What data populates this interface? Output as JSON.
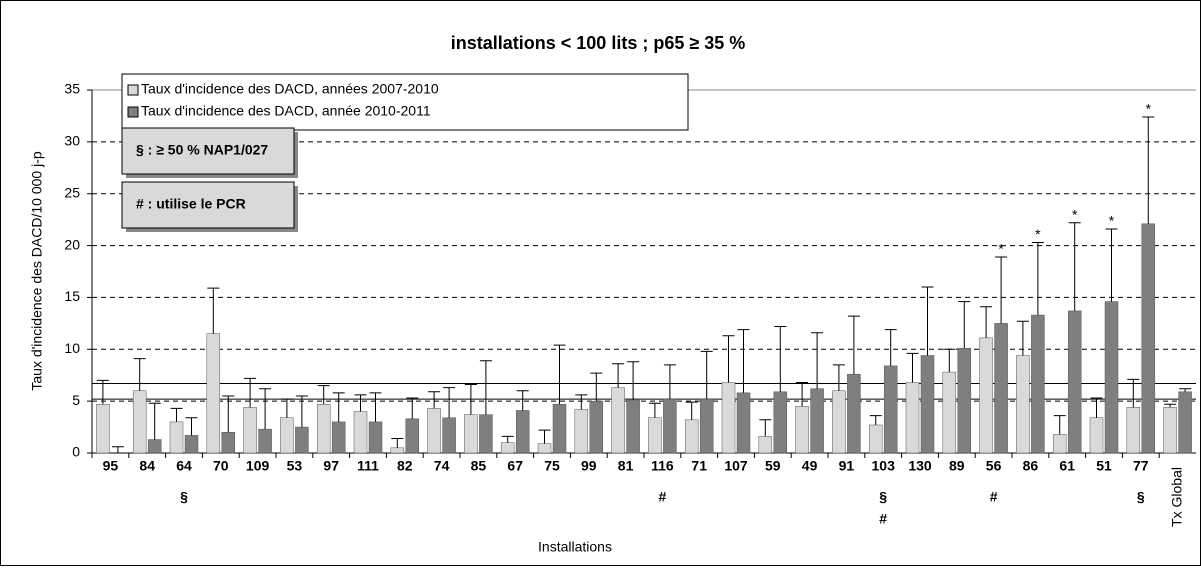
{
  "chart_data": {
    "type": "bar",
    "title": "installations < 100 lits ; p65 ≥ 35 %",
    "y_label": "Taux d'incidence des DACD/10 000 j-p",
    "x_label": "Installations",
    "categories": [
      "95",
      "84",
      "64",
      "70",
      "109",
      "53",
      "97",
      "111",
      "82",
      "74",
      "85",
      "67",
      "75",
      "99",
      "81",
      "116",
      "71",
      "107",
      "59",
      "49",
      "91",
      "103",
      "130",
      "89",
      "56",
      "86",
      "61",
      "51",
      "77",
      "Tx Global"
    ],
    "series": [
      {
        "name": "Taux d'incidence des DACD, années 2007-2010",
        "color": "#d9d9d9",
        "values": [
          4.7,
          6.0,
          3.0,
          11.5,
          4.4,
          3.4,
          4.7,
          4.0,
          0.5,
          4.3,
          3.7,
          1.0,
          0.9,
          4.2,
          6.3,
          3.4,
          3.2,
          6.8,
          1.6,
          4.5,
          6.0,
          2.7,
          6.8,
          7.8,
          11.1,
          9.4,
          1.8,
          3.4,
          4.4,
          4.4
        ],
        "ci_upper": [
          7.0,
          9.1,
          4.3,
          15.9,
          7.2,
          5.2,
          6.5,
          5.6,
          1.4,
          5.9,
          6.6,
          1.6,
          2.2,
          5.6,
          8.6,
          4.8,
          4.9,
          11.3,
          3.2,
          6.8,
          8.5,
          3.6,
          9.6,
          10.0,
          14.1,
          12.7,
          3.6,
          5.3,
          7.1,
          4.7
        ]
      },
      {
        "name": "Taux d'incidence des DACD, année 2010-2011",
        "color": "#7f7f7f",
        "values": [
          0,
          1.3,
          1.7,
          2.0,
          2.3,
          2.5,
          3.0,
          3.0,
          3.3,
          3.4,
          3.7,
          4.1,
          4.7,
          5.0,
          5.1,
          5.2,
          5.2,
          5.8,
          5.9,
          6.2,
          7.6,
          8.4,
          9.4,
          10.1,
          12.5,
          13.3,
          13.7,
          14.6,
          22.1,
          5.9
        ],
        "ci_upper": [
          0.6,
          4.8,
          3.4,
          5.5,
          6.2,
          5.5,
          5.8,
          5.8,
          5.3,
          6.3,
          8.9,
          6.0,
          10.4,
          7.7,
          8.8,
          8.5,
          9.8,
          11.9,
          12.2,
          11.6,
          13.2,
          11.9,
          16.0,
          14.6,
          18.9,
          20.3,
          22.2,
          21.6,
          32.4,
          6.2
        ],
        "stars": [
          null,
          null,
          null,
          null,
          null,
          null,
          null,
          null,
          null,
          null,
          null,
          null,
          null,
          null,
          null,
          null,
          null,
          null,
          null,
          null,
          null,
          null,
          null,
          null,
          "*",
          "*",
          "*",
          "*",
          "*",
          null
        ]
      }
    ],
    "markers_below": [
      null,
      null,
      [
        "§"
      ],
      null,
      null,
      null,
      null,
      null,
      null,
      null,
      null,
      null,
      null,
      null,
      null,
      [
        "#"
      ],
      null,
      null,
      null,
      null,
      null,
      [
        "§",
        "#"
      ],
      null,
      null,
      [
        "#"
      ],
      null,
      null,
      null,
      [
        "§"
      ],
      null
    ],
    "notes": [
      "§ : ≥ 50 % NAP1/027",
      "# : utilise le PCR"
    ],
    "reference_lines": [
      6.7,
      5.2
    ],
    "ylim": [
      0,
      35
    ],
    "yticks": [
      0,
      5,
      10,
      15,
      20,
      25,
      30,
      35
    ],
    "grid": true
  }
}
